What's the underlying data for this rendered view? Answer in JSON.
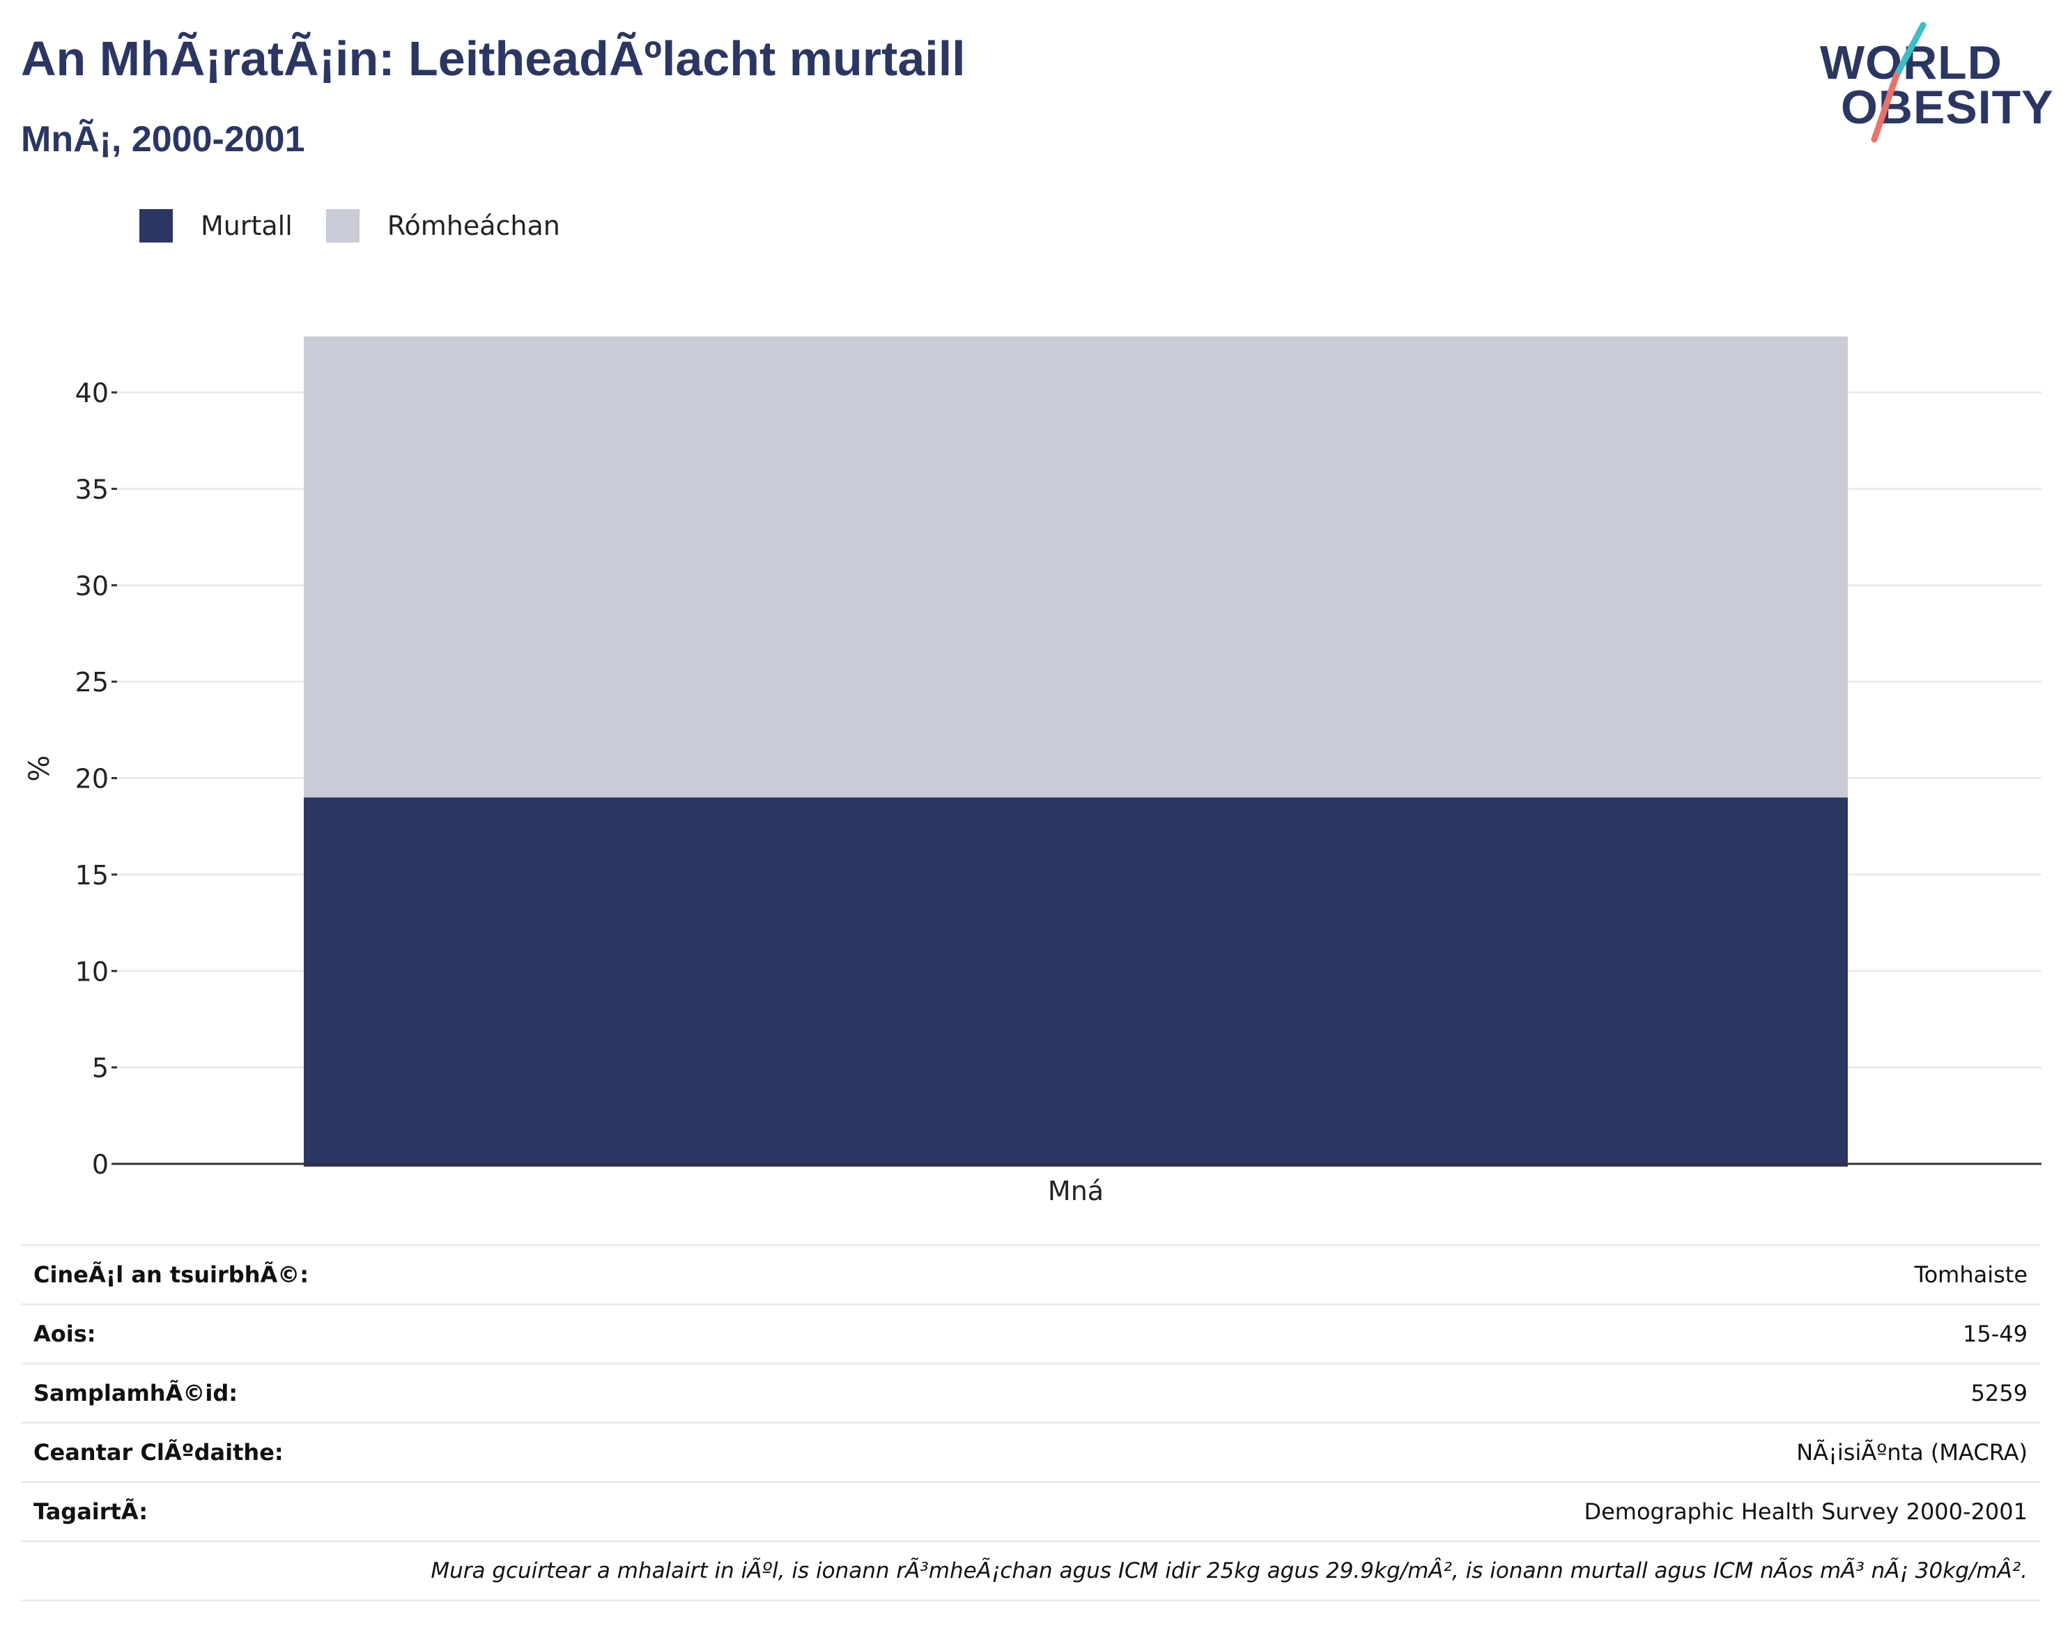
{
  "header": {
    "title": "An MhÃ¡ratÃ¡in: LeitheadÃºlacht murtaill",
    "subtitle": "MnÃ¡, 2000-2001"
  },
  "logo": {
    "line1": "WORLD",
    "line2": "OBESITY",
    "stroke_colors": [
      "#3bbfc4",
      "#e8736a"
    ]
  },
  "legend": [
    {
      "label": "Murtall",
      "color": "#2b3663"
    },
    {
      "label": "Rómheáchan",
      "color": "#c9ccd7"
    }
  ],
  "chart_data": {
    "type": "bar",
    "stacked": true,
    "categories": [
      "Mná"
    ],
    "series": [
      {
        "name": "Murtall",
        "values": [
          19.0
        ],
        "color": "#2b3663"
      },
      {
        "name": "Rómheáchan",
        "values": [
          23.9
        ],
        "color": "#c9ccd7"
      }
    ],
    "ylabel": "%",
    "ylim": [
      0,
      43
    ],
    "yticks": [
      0,
      5,
      10,
      15,
      20,
      25,
      30,
      35,
      40
    ],
    "grid": true,
    "legend_position": "top-left"
  },
  "info": [
    {
      "key": "CineÃ¡l an tsuirbhÃ©:",
      "value": "Tomhaiste"
    },
    {
      "key": "Aois:",
      "value": "15-49"
    },
    {
      "key": "SamplamhÃ©id:",
      "value": "5259"
    },
    {
      "key": "Ceantar ClÃºdaithe:",
      "value": "NÃ¡isiÃºnta (MACRA)"
    },
    {
      "key": "TagairtÃ:",
      "value": "Demographic Health Survey 2000-2001"
    }
  ],
  "note": "Mura gcuirtear a mhalairt in iÃºl, is ionann rÃ³mheÃ¡chan agus ICM idir 25kg agus 29.9kg/mÂ², is ionann murtall agus ICM nÃos mÃ³ nÃ¡ 30kg/mÂ²."
}
